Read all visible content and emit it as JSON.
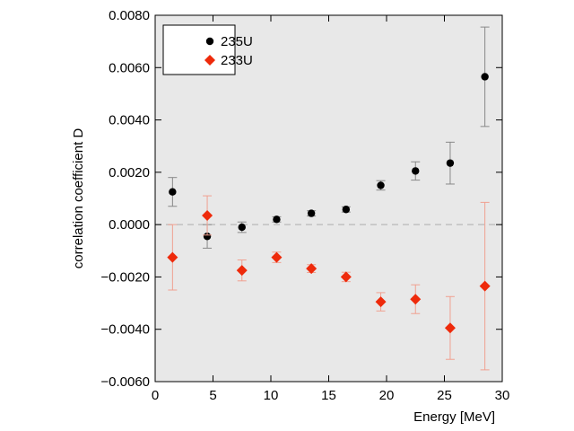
{
  "chart_data": {
    "type": "scatter",
    "title": "",
    "xlabel": "Energy [MeV]",
    "ylabel": "correlation coefficient D",
    "xlim": [
      0,
      30
    ],
    "ylim": [
      -0.006,
      0.008
    ],
    "xticks": [
      0,
      5,
      10,
      15,
      20,
      25,
      30
    ],
    "xtick_labels": [
      "0",
      "5",
      "10",
      "15",
      "20",
      "25",
      "30"
    ],
    "yticks": [
      -0.006,
      -0.004,
      -0.002,
      0.0,
      0.002,
      0.004,
      0.006,
      0.008
    ],
    "ytick_labels": [
      "−0.0060",
      "−0.0040",
      "−0.0020",
      "0.0000",
      "0.0020",
      "0.0040",
      "0.0060",
      "0.0080"
    ],
    "reference_line_y": 0,
    "legend_position": "top-left",
    "series": [
      {
        "name": "235U",
        "color": "#000000",
        "errorbar_color": "#888888",
        "marker": "circle",
        "points": [
          {
            "x": 1.5,
            "y": 0.00125,
            "yerr": 0.00055
          },
          {
            "x": 4.5,
            "y": -0.00045,
            "yerr": 0.00045
          },
          {
            "x": 7.5,
            "y": -0.0001,
            "yerr": 0.0002
          },
          {
            "x": 10.5,
            "y": 0.0002,
            "yerr": 0.0001
          },
          {
            "x": 13.5,
            "y": 0.00043,
            "yerr": 0.0001
          },
          {
            "x": 16.5,
            "y": 0.00058,
            "yerr": 0.0001
          },
          {
            "x": 19.5,
            "y": 0.0015,
            "yerr": 0.00018
          },
          {
            "x": 22.5,
            "y": 0.00205,
            "yerr": 0.00035
          },
          {
            "x": 25.5,
            "y": 0.00235,
            "yerr": 0.0008
          },
          {
            "x": 28.5,
            "y": 0.00565,
            "yerr": 0.0019
          }
        ]
      },
      {
        "name": "233U",
        "color": "#ee2a0b",
        "errorbar_color": "#f0a090",
        "marker": "diamond",
        "points": [
          {
            "x": 1.5,
            "y": -0.00125,
            "yerr": 0.00125
          },
          {
            "x": 4.5,
            "y": 0.00035,
            "yerr": 0.00075
          },
          {
            "x": 7.5,
            "y": -0.00175,
            "yerr": 0.0004
          },
          {
            "x": 10.5,
            "y": -0.00125,
            "yerr": 0.0002
          },
          {
            "x": 13.5,
            "y": -0.00168,
            "yerr": 0.00015
          },
          {
            "x": 16.5,
            "y": -0.002,
            "yerr": 0.00018
          },
          {
            "x": 19.5,
            "y": -0.00295,
            "yerr": 0.00035
          },
          {
            "x": 22.5,
            "y": -0.00285,
            "yerr": 0.00055
          },
          {
            "x": 25.5,
            "y": -0.00395,
            "yerr": 0.0012
          },
          {
            "x": 28.5,
            "y": -0.00235,
            "yerr": 0.0032
          }
        ]
      }
    ]
  }
}
